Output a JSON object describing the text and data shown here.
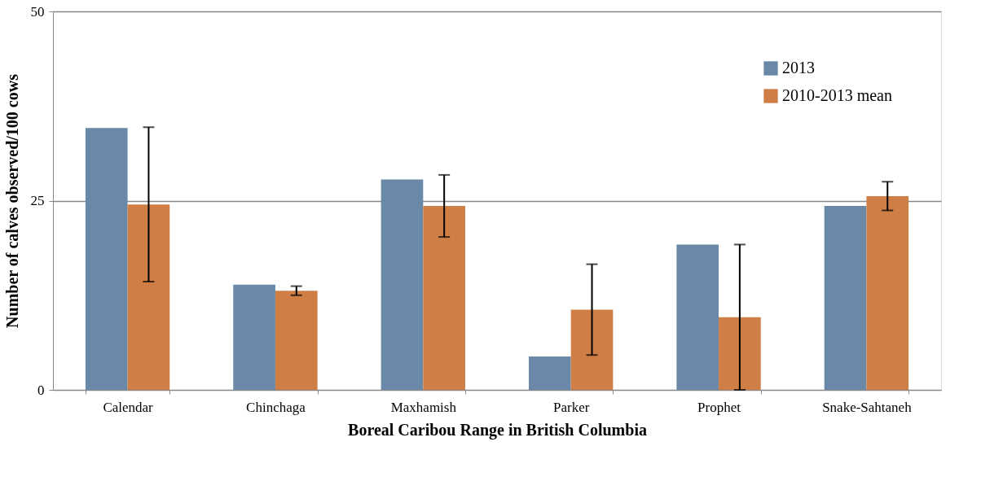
{
  "chart_data": {
    "type": "bar",
    "xlabel": "Boreal Caribou Range in British Columbia",
    "ylabel": "Number of calves observed/100 cows",
    "categories": [
      "Calendar",
      "Chinchaga",
      "Maxhamish",
      "Parker",
      "Prophet",
      "Snake-Sahtaneh"
    ],
    "series": [
      {
        "name": "2013",
        "color": "#6a89a8",
        "values": [
          34.6,
          13.9,
          27.8,
          4.4,
          19.2,
          24.3
        ]
      },
      {
        "name": "2010-2013 mean",
        "color": "#cf7f45",
        "values": [
          24.5,
          13.1,
          24.3,
          10.6,
          9.6,
          25.6
        ],
        "errors": [
          10.2,
          0.6,
          4.1,
          6.0,
          9.6,
          1.9
        ]
      }
    ],
    "ylim": [
      0,
      50
    ],
    "yticks": [
      0,
      25,
      50
    ],
    "grid": "y",
    "legend": "top right"
  }
}
